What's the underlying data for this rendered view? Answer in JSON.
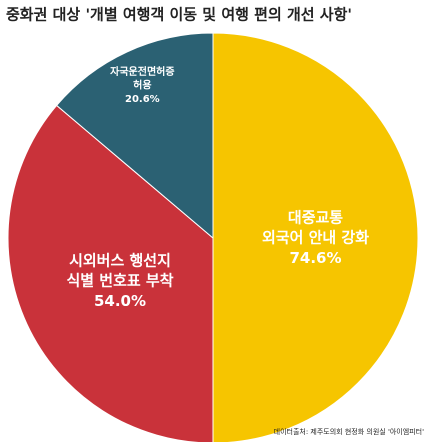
{
  "chart_data": {
    "type": "pie",
    "title": "중화권 대상 '개별 여행객 이동 및 여행 편의 개선 사항'",
    "categories": [
      [
        "대중교통",
        "외국어 안내 강화"
      ],
      [
        "시외버스 행선지",
        "식별 번호표 부착"
      ],
      [
        "자국운전면허증",
        "허용"
      ]
    ],
    "values": [
      74.6,
      54.0,
      20.6
    ],
    "value_labels": [
      "74.6%",
      "54.0%",
      "20.6%"
    ],
    "colors": [
      "#f6c500",
      "#c9323a",
      "#2b6173"
    ],
    "source": "데이터출처: 제주도의회 현정화 의원실 '아이엠피터'"
  }
}
